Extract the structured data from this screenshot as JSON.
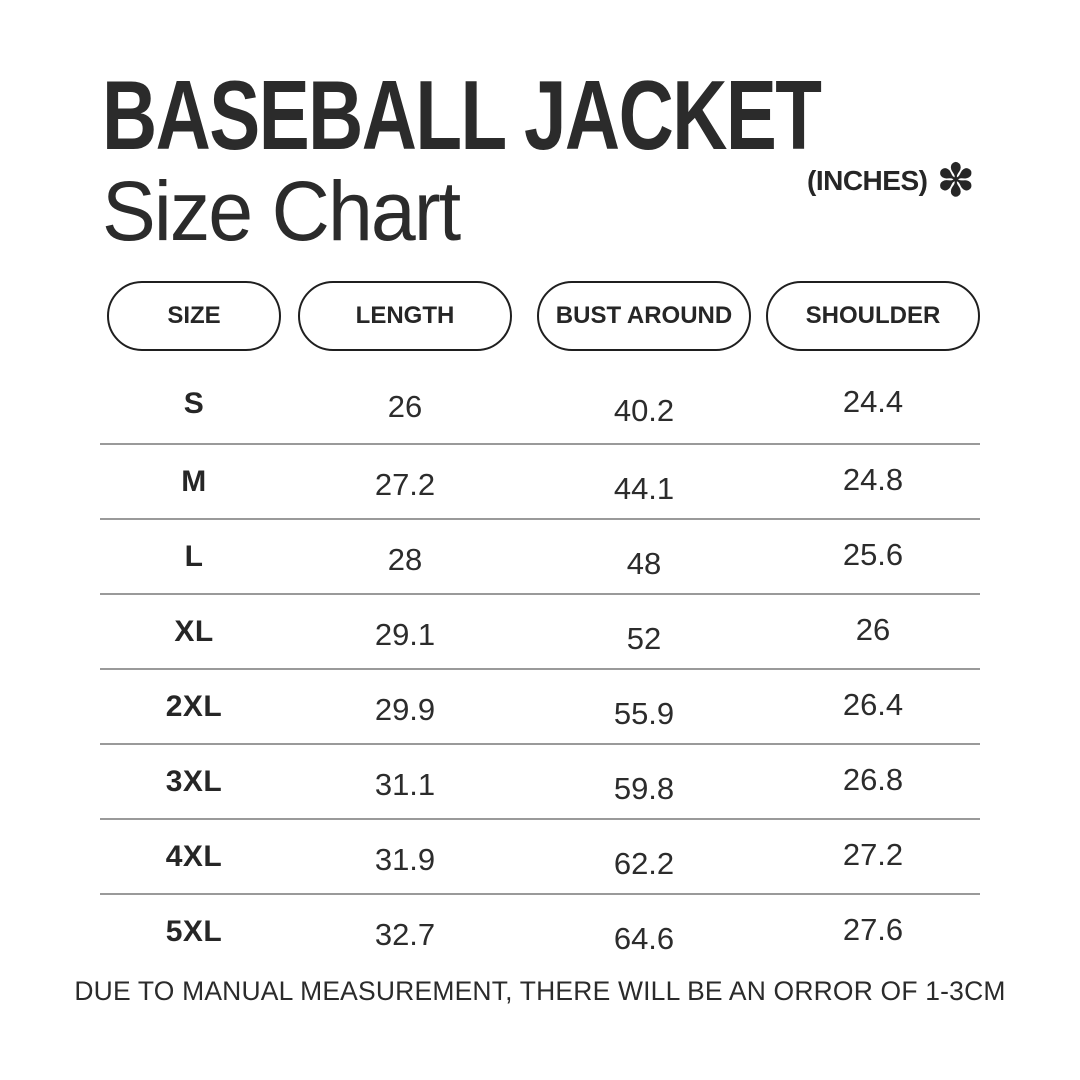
{
  "header": {
    "title": "BASEBALL JACKET",
    "subtitle": "Size Chart",
    "unit_label": "(INCHES)",
    "asterisk_glyph": "✽"
  },
  "chart_data": {
    "type": "table",
    "title": "BASEBALL JACKET Size Chart",
    "unit": "inches",
    "columns": [
      "SIZE",
      "LENGTH",
      "BUST AROUND",
      "SHOULDER"
    ],
    "rows": [
      [
        "S",
        "26",
        "40.2",
        "24.4"
      ],
      [
        "M",
        "27.2",
        "44.1",
        "24.8"
      ],
      [
        "L",
        "28",
        "48",
        "25.6"
      ],
      [
        "XL",
        "29.1",
        "52",
        "26"
      ],
      [
        "2XL",
        "29.9",
        "55.9",
        "26.4"
      ],
      [
        "3XL",
        "31.1",
        "59.8",
        "26.8"
      ],
      [
        "4XL",
        "31.9",
        "62.2",
        "27.2"
      ],
      [
        "5XL",
        "32.7",
        "64.6",
        "27.6"
      ]
    ],
    "footnote": "DUE TO MANUAL MEASUREMENT, THERE WILL BE AN ORROR OF 1-3CM"
  },
  "colors": {
    "text": "#2b2b2b",
    "divider": "#9a9a9a",
    "pill_border": "#1f1f1f",
    "background": "#ffffff"
  }
}
